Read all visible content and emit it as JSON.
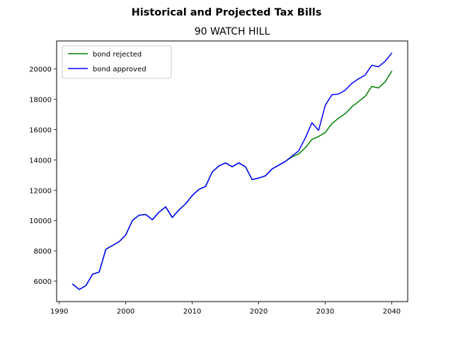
{
  "suptitle": "Historical and Projected Tax Bills",
  "chart_data": {
    "type": "line",
    "title": "90 WATCH HILL",
    "xlabel": "",
    "ylabel": "",
    "xlim": [
      1989.6,
      2042.4
    ],
    "ylim": [
      4650,
      21850
    ],
    "x_ticks": [
      1990,
      2000,
      2010,
      2020,
      2030,
      2040
    ],
    "y_ticks": [
      6000,
      8000,
      10000,
      12000,
      14000,
      16000,
      18000,
      20000
    ],
    "legend_position": "top-left",
    "grid": false,
    "series": [
      {
        "name": "bond rejected",
        "color": "#008000",
        "x": [
          1992,
          1993,
          1994,
          1995,
          1996,
          1997,
          1998,
          1999,
          2000,
          2001,
          2002,
          2003,
          2004,
          2005,
          2006,
          2007,
          2008,
          2009,
          2010,
          2011,
          2012,
          2013,
          2014,
          2015,
          2016,
          2017,
          2018,
          2019,
          2020,
          2021,
          2022,
          2023,
          2024,
          2025,
          2026,
          2027,
          2028,
          2029,
          2030,
          2031,
          2032,
          2033,
          2034,
          2035,
          2036,
          2037,
          2038,
          2039,
          2040
        ],
        "y": [
          5800,
          5450,
          5700,
          6450,
          6600,
          8100,
          8350,
          8600,
          9050,
          10000,
          10350,
          10400,
          10050,
          10550,
          10900,
          10200,
          10700,
          11100,
          11650,
          12050,
          12250,
          13200,
          13600,
          13800,
          13550,
          13800,
          13550,
          12700,
          12800,
          12950,
          13400,
          13650,
          13900,
          14200,
          14400,
          14800,
          15350,
          15550,
          15800,
          16400,
          16750,
          17050,
          17500,
          17850,
          18200,
          18850,
          18750,
          19150,
          19850
        ]
      },
      {
        "name": "bond approved",
        "color": "#0000ff",
        "x": [
          1992,
          1993,
          1994,
          1995,
          1996,
          1997,
          1998,
          1999,
          2000,
          2001,
          2002,
          2003,
          2004,
          2005,
          2006,
          2007,
          2008,
          2009,
          2010,
          2011,
          2012,
          2013,
          2014,
          2015,
          2016,
          2017,
          2018,
          2019,
          2020,
          2021,
          2022,
          2023,
          2024,
          2025,
          2026,
          2027,
          2028,
          2029,
          2030,
          2031,
          2032,
          2033,
          2034,
          2035,
          2036,
          2037,
          2038,
          2039,
          2040
        ],
        "y": [
          5800,
          5450,
          5700,
          6450,
          6600,
          8100,
          8350,
          8600,
          9050,
          10000,
          10350,
          10400,
          10050,
          10550,
          10900,
          10200,
          10700,
          11100,
          11650,
          12050,
          12250,
          13200,
          13600,
          13800,
          13550,
          13800,
          13550,
          12700,
          12800,
          12950,
          13400,
          13650,
          13900,
          14250,
          14600,
          15450,
          16450,
          15950,
          17600,
          18300,
          18350,
          18600,
          19050,
          19350,
          19600,
          20250,
          20150,
          20500,
          21050
        ]
      }
    ]
  }
}
